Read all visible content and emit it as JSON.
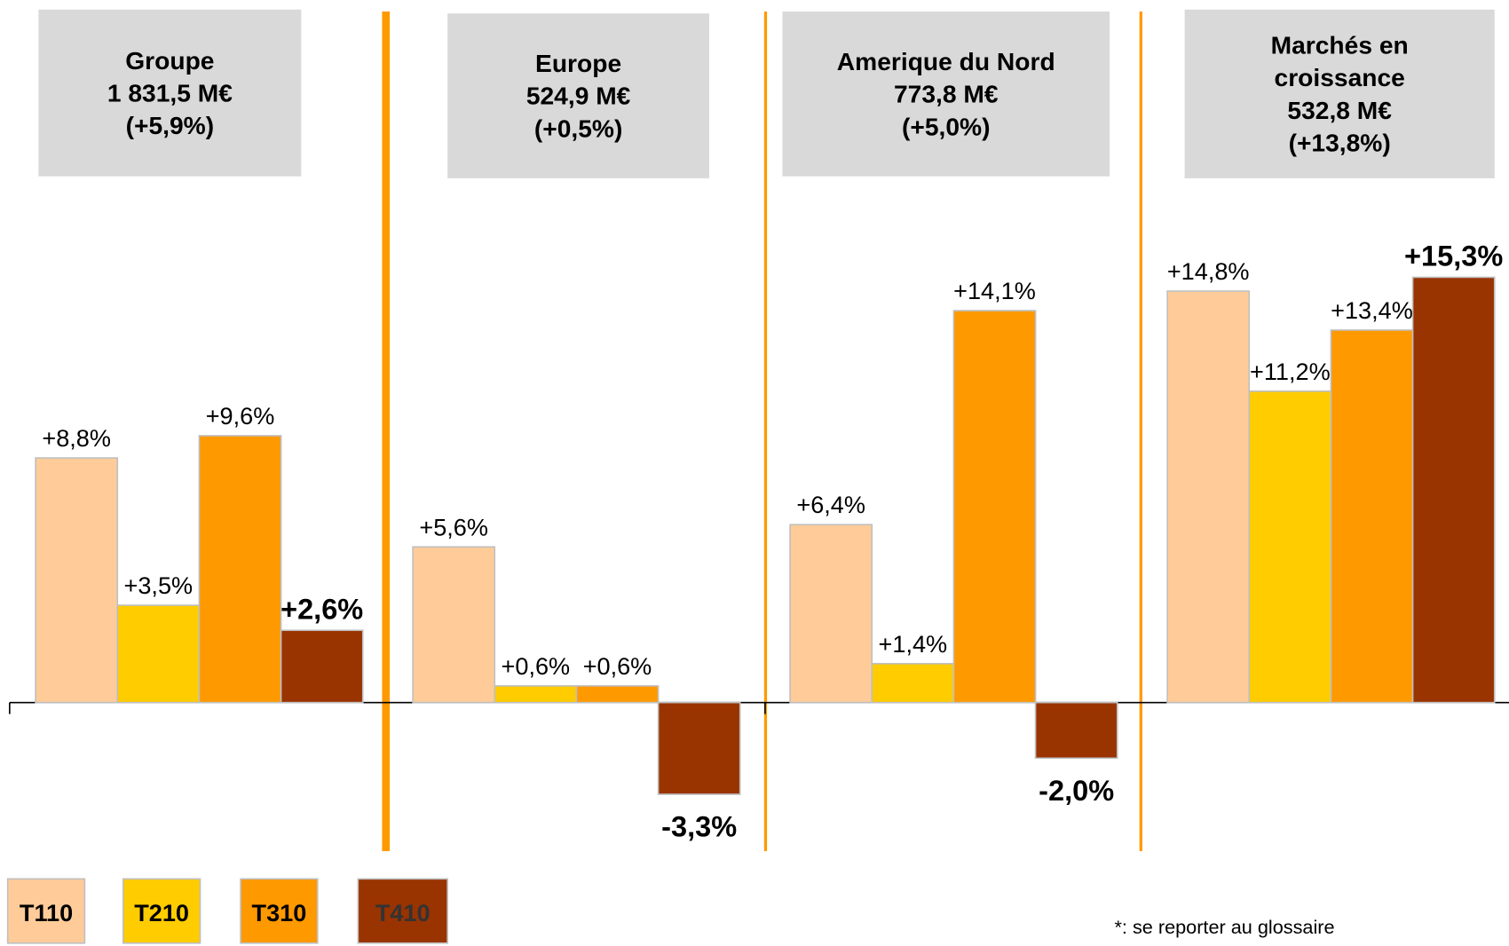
{
  "chart_data": {
    "type": "bar",
    "categories": [
      "Groupe",
      "Europe",
      "Amerique du Nord",
      "Marchés en croissance"
    ],
    "category_totals": [
      "1 831,5 M€",
      "524,9 M€",
      "773,8 M€",
      "532,8 M€"
    ],
    "category_growth": [
      "(+5,9%)",
      "(+0,5%)",
      "(+5,0%)",
      "(+13,8%)"
    ],
    "series": [
      {
        "name": "T110",
        "color": "#FFCC99",
        "values": [
          8.8,
          5.6,
          6.4,
          14.8
        ],
        "value_labels": [
          "+8,8%",
          "+5,6%",
          "+6,4%",
          "+14,8%"
        ]
      },
      {
        "name": "T210",
        "color": "#FFCC00",
        "values": [
          3.5,
          0.6,
          1.4,
          11.2
        ],
        "value_labels": [
          "+3,5%",
          "+0,6%",
          "+1,4%",
          "+11,2%"
        ]
      },
      {
        "name": "T310",
        "color": "#FF9900",
        "values": [
          9.6,
          0.6,
          14.1,
          13.4
        ],
        "value_labels": [
          "+9,6%",
          "+0,6%",
          "+14,1%",
          "+13,4%"
        ]
      },
      {
        "name": "T410",
        "color": "#993300",
        "values": [
          2.6,
          -3.3,
          -2.0,
          15.3
        ],
        "value_labels": [
          "+2,6%",
          "-3,3%",
          "-2,0%",
          "+15,3%"
        ]
      }
    ],
    "footnote": "*: se reporter au glossaire"
  }
}
